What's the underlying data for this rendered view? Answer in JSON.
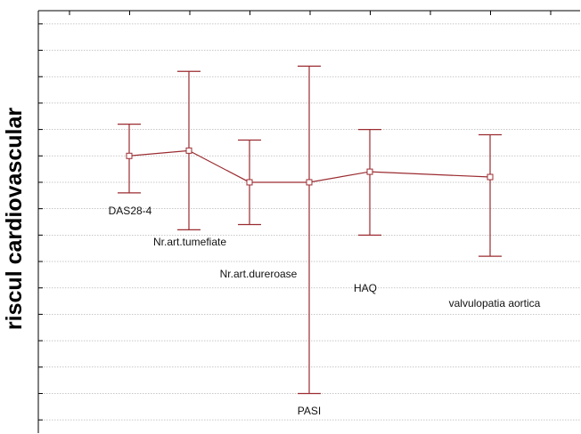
{
  "chart_data": {
    "type": "line",
    "ylabel": "riscul cardiovascular",
    "xlabel": "",
    "title": "",
    "grid": true,
    "y_ticks_labeled": false,
    "series_color": "#9b2c31",
    "categories": [
      "DAS28-4",
      "Nr.art.tumefiate",
      "Nr.art.dureroase",
      "PASI",
      "HAQ",
      "valvulopatia aortica"
    ],
    "series": [
      {
        "values": [
          0.5,
          0.6,
          0.0,
          0.0,
          0.2,
          0.1
        ],
        "lower": [
          -0.2,
          -0.9,
          -0.8,
          -4.0,
          -1.0,
          -1.4
        ],
        "upper": [
          1.1,
          2.1,
          0.8,
          2.2,
          1.0,
          0.9
        ]
      }
    ],
    "ylim": [
      -4.75,
      3.25
    ]
  }
}
